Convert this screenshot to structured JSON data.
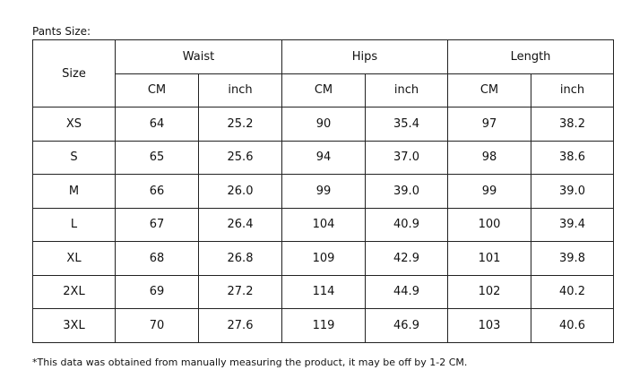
{
  "title": "Pants Size:",
  "table": {
    "header": {
      "size": "Size",
      "groups": [
        "Waist",
        "Hips",
        "Length"
      ],
      "units": [
        "CM",
        "inch",
        "CM",
        "inch",
        "CM",
        "inch"
      ]
    },
    "rows": [
      [
        "XS",
        "64",
        "25.2",
        "90",
        "35.4",
        "97",
        "38.2"
      ],
      [
        "S",
        "65",
        "25.6",
        "94",
        "37.0",
        "98",
        "38.6"
      ],
      [
        "M",
        "66",
        "26.0",
        "99",
        "39.0",
        "99",
        "39.0"
      ],
      [
        "L",
        "67",
        "26.4",
        "104",
        "40.9",
        "100",
        "39.4"
      ],
      [
        "XL",
        "68",
        "26.8",
        "109",
        "42.9",
        "101",
        "39.8"
      ],
      [
        "2XL",
        "69",
        "27.2",
        "114",
        "44.9",
        "102",
        "40.2"
      ],
      [
        "3XL",
        "70",
        "27.6",
        "119",
        "46.9",
        "103",
        "40.6"
      ]
    ]
  },
  "footnote": "*This data was obtained from manually measuring the product, it may be off by 1-2 CM."
}
